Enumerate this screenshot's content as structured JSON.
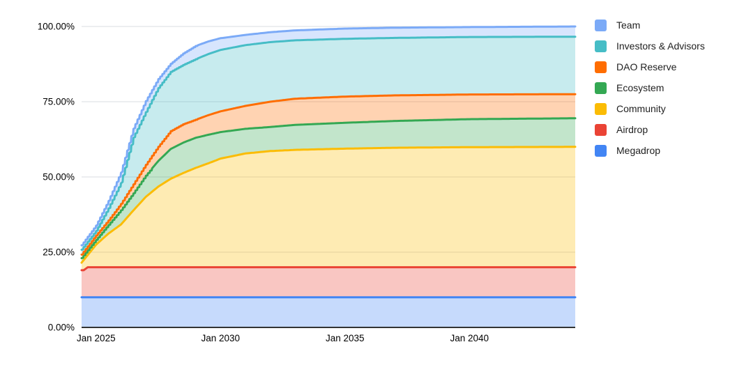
{
  "page": {
    "background": "#ffffff"
  },
  "chart_data": {
    "type": "area",
    "stacked": true,
    "title": "",
    "description": "Cumulative token unlock schedule by allocation, percent of total supply, monthly from mid-2024 to 2044",
    "grid": true,
    "legend_position": "right",
    "x_axis": {
      "label": "",
      "start": "Jun 2024",
      "total_months": 238,
      "ticks": [
        {
          "label": "Jan 2025",
          "month": 7
        },
        {
          "label": "Jan 2030",
          "month": 67
        },
        {
          "label": "Jan 2035",
          "month": 127
        },
        {
          "label": "Jan 2040",
          "month": 187
        }
      ]
    },
    "y_axis": {
      "label": "",
      "min": 0,
      "max": 100,
      "ticks": [
        {
          "label": "0.00%",
          "value": 0
        },
        {
          "label": "25.00%",
          "value": 25
        },
        {
          "label": "50.00%",
          "value": 50
        },
        {
          "label": "75.00%",
          "value": 75
        },
        {
          "label": "100.00%",
          "value": 100
        }
      ]
    },
    "series": [
      {
        "name": "Megadrop",
        "color": "#4285F4",
        "allocation_pct": 10,
        "final_top_pct": 10,
        "step_until_month": 0,
        "top_keypoints": [
          [
            0,
            10
          ],
          [
            238,
            10
          ]
        ]
      },
      {
        "name": "Airdrop",
        "color": "#EA4335",
        "allocation_pct": 10,
        "final_top_pct": 20,
        "step_until_month": 0,
        "top_keypoints": [
          [
            0,
            19
          ],
          [
            1.7,
            19
          ],
          [
            2.3,
            20
          ],
          [
            238,
            20
          ]
        ]
      },
      {
        "name": "Community",
        "color": "#FBBC04",
        "allocation_pct": 40,
        "final_top_pct": 60,
        "step_until_month": 0,
        "top_keypoints": [
          [
            0,
            21.5
          ],
          [
            7,
            27.5
          ],
          [
            13,
            31.2
          ],
          [
            19,
            34.2
          ],
          [
            25,
            38.9
          ],
          [
            31,
            43.4
          ],
          [
            37,
            46.8
          ],
          [
            43,
            49.4
          ],
          [
            49,
            51.3
          ],
          [
            55,
            53
          ],
          [
            61,
            54.5
          ],
          [
            67,
            56.1
          ],
          [
            79,
            57.8
          ],
          [
            91,
            58.6
          ],
          [
            103,
            59
          ],
          [
            127,
            59.4
          ],
          [
            151,
            59.7
          ],
          [
            187,
            59.9
          ],
          [
            238,
            60
          ]
        ]
      },
      {
        "name": "Ecosystem",
        "color": "#34A853",
        "allocation_pct": 9.5,
        "final_top_pct": 69.5,
        "step_until_month": 34,
        "top_keypoints": [
          [
            0,
            23
          ],
          [
            7,
            29
          ],
          [
            13,
            34
          ],
          [
            19,
            38.9
          ],
          [
            25,
            44.5
          ],
          [
            31,
            50.4
          ],
          [
            37,
            55.3
          ],
          [
            43,
            59.3
          ],
          [
            49,
            61.4
          ],
          [
            55,
            63
          ],
          [
            61,
            64
          ],
          [
            67,
            64.9
          ],
          [
            79,
            66
          ],
          [
            91,
            66.6
          ],
          [
            103,
            67.3
          ],
          [
            127,
            68
          ],
          [
            151,
            68.6
          ],
          [
            187,
            69.2
          ],
          [
            238,
            69.5
          ]
        ]
      },
      {
        "name": "DAO Reserve",
        "color": "#FF6D01",
        "allocation_pct": 8,
        "final_top_pct": 77.5,
        "step_until_month": 56,
        "top_keypoints": [
          [
            0,
            24.2
          ],
          [
            7,
            30.5
          ],
          [
            13,
            35.5
          ],
          [
            19,
            41
          ],
          [
            25,
            47.5
          ],
          [
            31,
            54
          ],
          [
            37,
            60
          ],
          [
            43,
            65.2
          ],
          [
            49,
            67.5
          ],
          [
            55,
            69
          ],
          [
            61,
            70.5
          ],
          [
            67,
            71.8
          ],
          [
            79,
            73.6
          ],
          [
            91,
            75
          ],
          [
            103,
            76
          ],
          [
            127,
            76.7
          ],
          [
            151,
            77.1
          ],
          [
            187,
            77.4
          ],
          [
            238,
            77.5
          ]
        ]
      },
      {
        "name": "Investors & Advisors",
        "color": "#46BDC6",
        "allocation_pct": 19,
        "final_top_pct": 96.6,
        "step_until_month": 56,
        "top_keypoints": [
          [
            0,
            25.8
          ],
          [
            7,
            32
          ],
          [
            13,
            39.5
          ],
          [
            19,
            47.9
          ],
          [
            25,
            63
          ],
          [
            31,
            71.5
          ],
          [
            37,
            79.5
          ],
          [
            43,
            84.9
          ],
          [
            49,
            87.2
          ],
          [
            55,
            89.1
          ],
          [
            61,
            90.8
          ],
          [
            67,
            92.2
          ],
          [
            79,
            93.8
          ],
          [
            91,
            94.8
          ],
          [
            103,
            95.4
          ],
          [
            127,
            95.9
          ],
          [
            151,
            96.2
          ],
          [
            187,
            96.5
          ],
          [
            238,
            96.6
          ]
        ]
      },
      {
        "name": "Team",
        "color": "#7BAAF7",
        "allocation_pct": 3.5,
        "final_top_pct": 100,
        "step_until_month": 56,
        "top_keypoints": [
          [
            0,
            27.3
          ],
          [
            7,
            33.8
          ],
          [
            13,
            42
          ],
          [
            19,
            51.4
          ],
          [
            25,
            66
          ],
          [
            31,
            75.2
          ],
          [
            37,
            82.5
          ],
          [
            43,
            87.6
          ],
          [
            49,
            91
          ],
          [
            55,
            93.5
          ],
          [
            61,
            95
          ],
          [
            67,
            96.1
          ],
          [
            79,
            97.2
          ],
          [
            91,
            98.1
          ],
          [
            103,
            98.7
          ],
          [
            127,
            99.3
          ],
          [
            151,
            99.6
          ],
          [
            187,
            99.8
          ],
          [
            238,
            100
          ]
        ]
      }
    ],
    "legend": [
      {
        "label": "Team",
        "color": "#7BAAF7"
      },
      {
        "label": "Investors & Advisors",
        "color": "#46BDC6"
      },
      {
        "label": "DAO Reserve",
        "color": "#FF6D01"
      },
      {
        "label": "Ecosystem",
        "color": "#34A853"
      },
      {
        "label": "Community",
        "color": "#FBBC04"
      },
      {
        "label": "Airdrop",
        "color": "#EA4335"
      },
      {
        "label": "Megadrop",
        "color": "#4285F4"
      }
    ],
    "style": {
      "fill_opacity": 0.3,
      "line_width": 3,
      "gridline_color": "#dadce0",
      "axis_line_color": "#333333",
      "axis_text_color": "#000000"
    }
  }
}
